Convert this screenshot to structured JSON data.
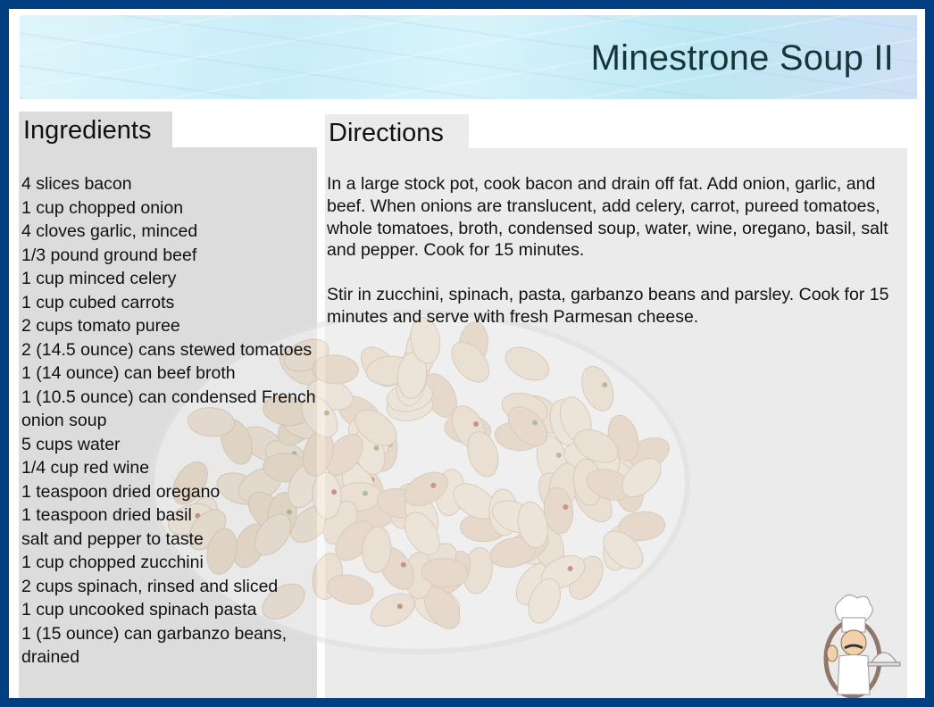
{
  "title": "Minestrone Soup II",
  "ingredients": {
    "heading": "Ingredients",
    "items": [
      "4 slices bacon",
      "1 cup chopped onion",
      "4 cloves garlic, minced",
      "1/3 pound ground beef",
      "1 cup minced celery",
      "1 cup cubed carrots",
      "2 cups tomato puree",
      "2 (14.5 ounce) cans stewed tomatoes",
      "1 (14 ounce) can beef broth",
      "1 (10.5 ounce) can condensed French onion soup",
      "5 cups water",
      "1/4 cup red wine",
      "1 teaspoon dried oregano",
      "1 teaspoon dried basil",
      "salt and pepper to taste",
      "1 cup chopped zucchini",
      "2 cups spinach, rinsed and sliced",
      "1 cup uncooked spinach pasta",
      "1 (15 ounce) can garbanzo beans, drained"
    ]
  },
  "directions": {
    "heading": "Directions",
    "paragraphs": [
      "In a large stock pot, cook bacon and drain off fat.  Add onion, garlic, and beef. When onions are translucent, add celery, carrot, pureed tomatoes, whole tomatoes, broth, condensed soup, water, wine, oregano, basil, salt and pepper.  Cook for 15 minutes.",
      "Stir in zucchini, spinach, pasta, garbanzo beans and parsley.  Cook for 15 minutes and serve with fresh Parmesan cheese."
    ]
  },
  "images": {
    "background": "bowl-of-beans",
    "logo": "chef-with-cloche"
  },
  "colors": {
    "frame": "#023f80",
    "title": "#17363a"
  }
}
